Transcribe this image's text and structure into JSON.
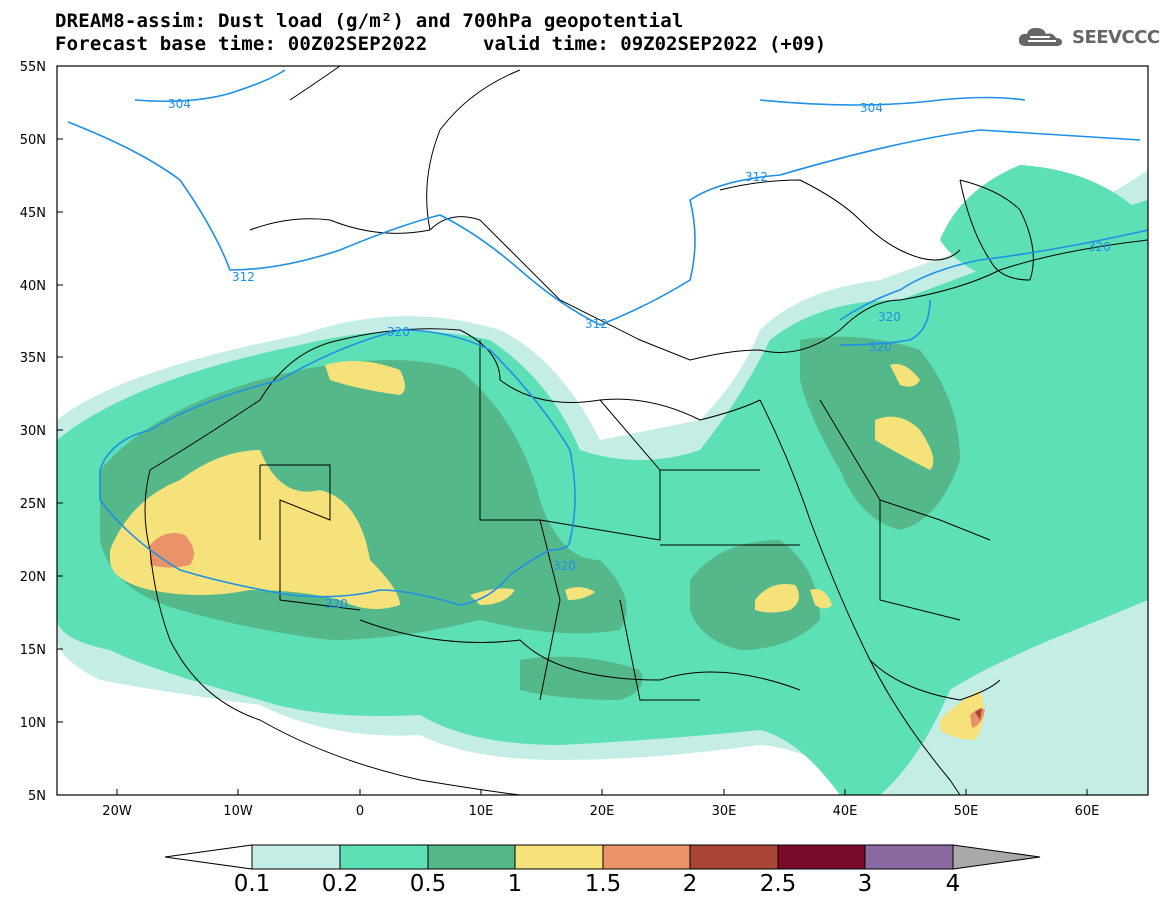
{
  "title": {
    "line1": "DREAM8-assim: Dust load (g/m²) and 700hPa geopotential",
    "line2": "Forecast base time: 00Z02SEP2022",
    "valid": "valid time: 09Z02SEP2022 (+09)"
  },
  "logo": {
    "text": "SEEVCCC",
    "icon": "cloud-logo-icon"
  },
  "axes": {
    "lat_labels": [
      "55N",
      "50N",
      "45N",
      "40N",
      "35N",
      "30N",
      "25N",
      "20N",
      "15N",
      "10N",
      "5N"
    ],
    "lon_labels": [
      "20W",
      "10W",
      "0",
      "10E",
      "20E",
      "30E",
      "40E",
      "50E",
      "60E"
    ],
    "lat_range": [
      5,
      55
    ],
    "lon_range": [
      -25,
      65
    ]
  },
  "contours": {
    "labels": [
      "304",
      "304",
      "312",
      "312",
      "312",
      "320",
      "320",
      "320",
      "320",
      "320",
      "320"
    ],
    "color": "#1e90e6"
  },
  "colorbar": {
    "levels": [
      "0.1",
      "0.2",
      "0.5",
      "1",
      "1.5",
      "2",
      "2.5",
      "3",
      "4"
    ],
    "colors": [
      "#c4ede6",
      "#5ee0b6",
      "#55b88a",
      "#f5e27a",
      "#ea9268",
      "#a84536",
      "#7a0a2a",
      "#8a6aa0"
    ],
    "under_color": "#ffffff",
    "over_color": "#a9a9a9"
  }
}
